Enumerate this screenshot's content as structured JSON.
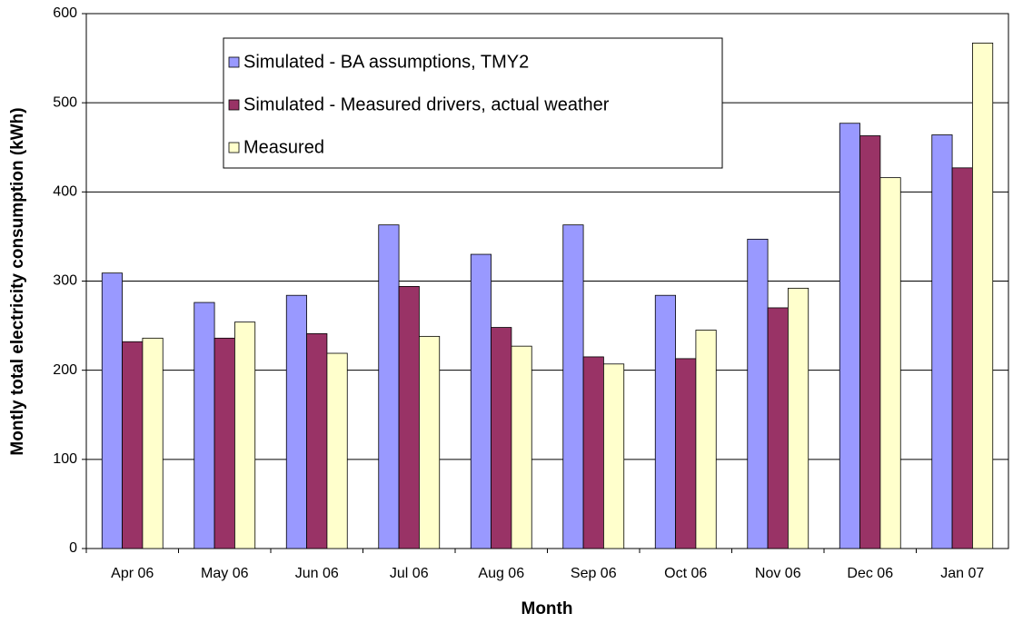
{
  "chart_data": {
    "type": "bar",
    "x_label": "Month",
    "y_label": "Montly total electricity consumption (kWh)",
    "categories": [
      "Apr 06",
      "May 06",
      "Jun 06",
      "Jul 06",
      "Aug 06",
      "Sep 06",
      "Oct 06",
      "Nov 06",
      "Dec 06",
      "Jan 07"
    ],
    "series": [
      {
        "name": "Simulated - BA assumptions, TMY2",
        "color": "#9999ff",
        "values": [
          309,
          276,
          284,
          363,
          330,
          363,
          284,
          347,
          477,
          464
        ]
      },
      {
        "name": "Simulated - Measured drivers, actual weather",
        "color": "#993366",
        "values": [
          232,
          236,
          241,
          294,
          248,
          215,
          213,
          270,
          463,
          427
        ]
      },
      {
        "name": "Measured",
        "color": "#ffffcc",
        "values": [
          236,
          254,
          219,
          238,
          227,
          207,
          245,
          292,
          416,
          567
        ]
      }
    ],
    "ylim": [
      0,
      600
    ],
    "yticks": [
      0,
      100,
      200,
      300,
      400,
      500,
      600
    ],
    "grid": true
  }
}
